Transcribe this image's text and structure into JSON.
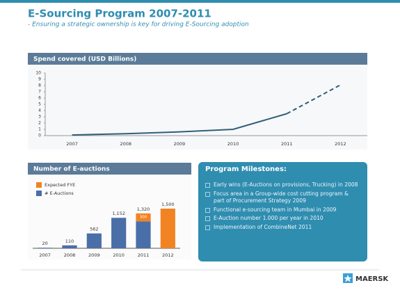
{
  "title": "E-Sourcing Program 2007-2011",
  "subtitle": "- Ensuring a strategic ownership is key for driving E-Sourcing adoption",
  "chart_data": [
    {
      "type": "line",
      "title": "Spend covered (USD Billions)",
      "categories": [
        "2007",
        "2008",
        "2009",
        "2010",
        "2011",
        "2012"
      ],
      "series": [
        {
          "color": "#2f5f78",
          "values": [
            0.1,
            0.3,
            0.6,
            1.0,
            3.5,
            null
          ]
        },
        {
          "color": "#2f5f78",
          "dashed": true,
          "values": [
            null,
            null,
            null,
            null,
            3.5,
            8.1
          ]
        }
      ],
      "ylim": [
        0,
        10
      ],
      "yticks": [
        0,
        1,
        2,
        3,
        4,
        5,
        6,
        7,
        8,
        9,
        10
      ],
      "grid": false
    },
    {
      "type": "stacked-bar",
      "title": "Number of E-auctions",
      "categories": [
        "2007",
        "2008",
        "2009",
        "2010",
        "2011",
        "2012"
      ],
      "series": [
        {
          "name": "# E-Auctions",
          "color": "#4a6ea8",
          "values": [
            20,
            110,
            562,
            1152,
            1020,
            null
          ]
        },
        {
          "name": "Expected FYE",
          "color": "#f28322",
          "values": [
            null,
            null,
            null,
            null,
            300,
            1500
          ],
          "value_labels": [
            null,
            null,
            null,
            null,
            "300",
            null
          ]
        }
      ],
      "totals": [
        20,
        110,
        562,
        1152,
        1320,
        1500
      ],
      "total_labels": [
        "20",
        "110",
        "562",
        "1,152",
        "1,320",
        "1,500"
      ],
      "legend": "top-left"
    }
  ],
  "milestones": {
    "title": "Program Milestones:",
    "items": [
      "Early wins (E-Auctions on provisions, Trucking) in 2008",
      "Focus area in a Group-wide cost cutting program & part of Procurement Strategy 2009",
      "Functional e-sourcing team in Mumbai in 2009",
      "E-Auction number 1.000 per year in 2010",
      "Implementation of CombineNet 2011"
    ]
  },
  "logo": "MAERSK"
}
